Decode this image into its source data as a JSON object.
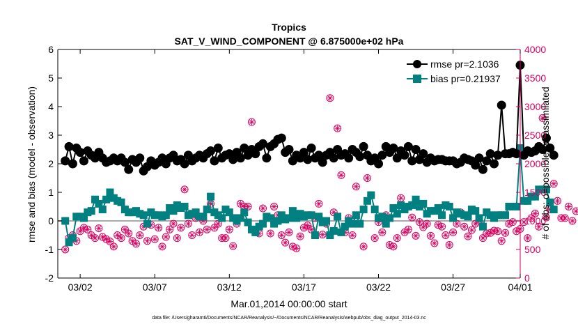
{
  "colors": {
    "rmse": "#000000",
    "bias": "#008080",
    "obs": "#d6005f",
    "zero": "#aaaaaa"
  },
  "chart_data": {
    "type": "line",
    "title": "Tropics",
    "subtitle": "SAT_V_WIND_COMPONENT @ 6.875000e+02 hPa",
    "xlabel": "Mar.01,2014 00:00:00 start",
    "ylabel_left": "rmse and bias (model - observation)",
    "ylabel_right": "# of obs: o=possible; ×=assimilated",
    "footnote": "data file: /Users/gharamti/Documents/NCAR/Reanalysis/~/Documents/NCAR/Reanalysis/webpub/obs_diag_output_2014-03.nc",
    "xlim": [
      0.5,
      31.5
    ],
    "ylim_left": [
      -2,
      6
    ],
    "ylim_right": [
      0,
      4000
    ],
    "x_ticks": [
      {
        "v": 2,
        "label": "03/02"
      },
      {
        "v": 7,
        "label": "03/07"
      },
      {
        "v": 12,
        "label": "03/12"
      },
      {
        "v": 17,
        "label": "03/17"
      },
      {
        "v": 22,
        "label": "03/22"
      },
      {
        "v": 27,
        "label": "03/27"
      },
      {
        "v": 32,
        "label": "04/01"
      }
    ],
    "y_ticks_left": [
      "-2",
      "-1",
      "0",
      "1",
      "2",
      "3",
      "4",
      "5",
      "6"
    ],
    "y_ticks_right": [
      "0",
      "500",
      "1000",
      "1500",
      "2000",
      "2500",
      "3000",
      "3500",
      "4000"
    ],
    "series": [
      {
        "name": "rmse pr=2.1036",
        "marker": "circle",
        "values": [
          2.1,
          2.6,
          2.0,
          2.55,
          2.4,
          2.1,
          2.45,
          2.3,
          2.2,
          2.4,
          2.2,
          2.05,
          2.1,
          2.2,
          2.1,
          2.2,
          2.05,
          1.8,
          2.15,
          2.05,
          2.2,
          1.75,
          1.9,
          2.1,
          1.95,
          2.05,
          2.2,
          2.0,
          2.2,
          2.3,
          2.1,
          2.15,
          2.0,
          2.3,
          2.1,
          2.2,
          2.3,
          2.2,
          2.35,
          2.45,
          2.1,
          2.55,
          2.2,
          2.3,
          2.35,
          2.15,
          2.4,
          2.2,
          2.55,
          2.3,
          2.5,
          2.35,
          2.6,
          2.7,
          2.2,
          2.6,
          2.7,
          2.85,
          2.9,
          2.4,
          2.5,
          2.1,
          2.3,
          2.2,
          2.4,
          2.15,
          2.55,
          2.2,
          2.3,
          2.05,
          2.3,
          2.4,
          2.2,
          2.5,
          2.3,
          2.35,
          2.2,
          2.5,
          2.4,
          2.25,
          2.6,
          2.3,
          2.1,
          2.2,
          2.0,
          2.3,
          2.6,
          2.4,
          2.55,
          2.2,
          2.45,
          2.3,
          2.6,
          2.1,
          2.5,
          2.15,
          2.35,
          2.05,
          2.2,
          2.1,
          2.15,
          2.15,
          2.1,
          2.1,
          2.1,
          2.0,
          2.05,
          2.2,
          2.15,
          2.1,
          1.95,
          2.2,
          1.8,
          2.1,
          2.35,
          2.0,
          2.3,
          4.05,
          2.35,
          2.35,
          2.4,
          2.35,
          5.45,
          2.3,
          2.45,
          2.4,
          2.45,
          2.6,
          2.5,
          2.9,
          2.55,
          2.3
        ]
      },
      {
        "name": "bias pr=0.21937",
        "marker": "square",
        "values": [
          0.0,
          -0.75,
          -0.6,
          0.15,
          0.15,
          0.1,
          0.3,
          0.35,
          0.75,
          0.6,
          0.4,
          0.75,
          1.0,
          0.8,
          0.7,
          0.65,
          0.4,
          0.3,
          0.3,
          0.35,
          0.25,
          0.2,
          -0.1,
          0.3,
          0.2,
          0.2,
          0.15,
          0.2,
          0.45,
          0.35,
          0.55,
          0.45,
          0.5,
          0.2,
          0.25,
          0.3,
          0.15,
          0.15,
          0.4,
          0.85,
          0.3,
          0.2,
          0.1,
          0.4,
          0.3,
          0.1,
          0.0,
          0.1,
          0.3,
          -0.05,
          -0.3,
          -0.4,
          -0.2,
          -0.1,
          0.15,
          0.1,
          -0.1,
          0.0,
          0.2,
          0.05,
          0.1,
          0.35,
          0.1,
          0.25,
          0.15,
          0.2,
          0.2,
          -0.5,
          0.15,
          -0.05,
          0.0,
          -0.5,
          -0.35,
          0.15,
          -0.4,
          -0.2,
          0.0,
          -0.1,
          0.2,
          -0.1,
          0.4,
          0.7,
          0.9,
          0.4,
          0.1,
          0.15,
          -0.1,
          0.1,
          0.45,
          0.25,
          0.55,
          0.4,
          0.5,
          0.55,
          0.75,
          0.5,
          0.6,
          0.25,
          0.35,
          0.35,
          0.45,
          0.2,
          0.55,
          0.5,
          0.1,
          0.3,
          0.25,
          0.2,
          0.15,
          0.4,
          0.35,
          0.1,
          -0.2,
          0.3,
          0.2,
          0.1,
          0.2,
          0.2,
          0.2,
          0.5,
          0.5,
          0.5,
          2.55,
          0.7,
          0.7,
          0.85,
          0.85,
          1.1,
          1.1,
          1.1,
          0.65,
          0.4
        ]
      }
    ],
    "obs_counts": [
      500,
      700,
      750,
      650,
      820,
      880,
      850,
      750,
      700,
      870,
      720,
      680,
      640,
      550,
      750,
      700,
      850,
      780,
      650,
      600,
      750,
      900,
      650,
      930,
      680,
      880,
      550,
      720,
      850,
      950,
      700,
      880,
      1550,
      950,
      750,
      1050,
      800,
      1000,
      850,
      1300,
      880,
      950,
      700,
      700,
      850,
      560,
      950,
      1300,
      1250,
      1250,
      2730,
      800,
      780,
      1220,
      1050,
      780,
      1250,
      1100,
      750,
      620,
      800,
      550,
      520,
      730,
      880,
      920,
      850,
      1050,
      1300,
      760,
      950,
      3150,
      1150,
      2620,
      1800,
      800,
      1050,
      750,
      1600,
      950,
      550,
      1750,
      1450,
      700,
      980,
      800,
      1100,
      580,
      550,
      700,
      1400,
      800,
      850,
      1060,
      740,
      980,
      890,
      950,
      740,
      610,
      930,
      900,
      750,
      580,
      800,
      950,
      1150,
      900,
      730,
      840,
      950,
      1000,
      700,
      780,
      790,
      830,
      820,
      650,
      790,
      950,
      980,
      820,
      860,
      980,
      700,
      1050,
      1130,
      900,
      2800,
      1060,
      1200,
      1650,
      1350,
      1050,
      1050,
      1250,
      1000,
      1170
    ]
  },
  "legend": {
    "rmse": "rmse pr=2.1036",
    "bias": "bias pr=0.21937"
  }
}
